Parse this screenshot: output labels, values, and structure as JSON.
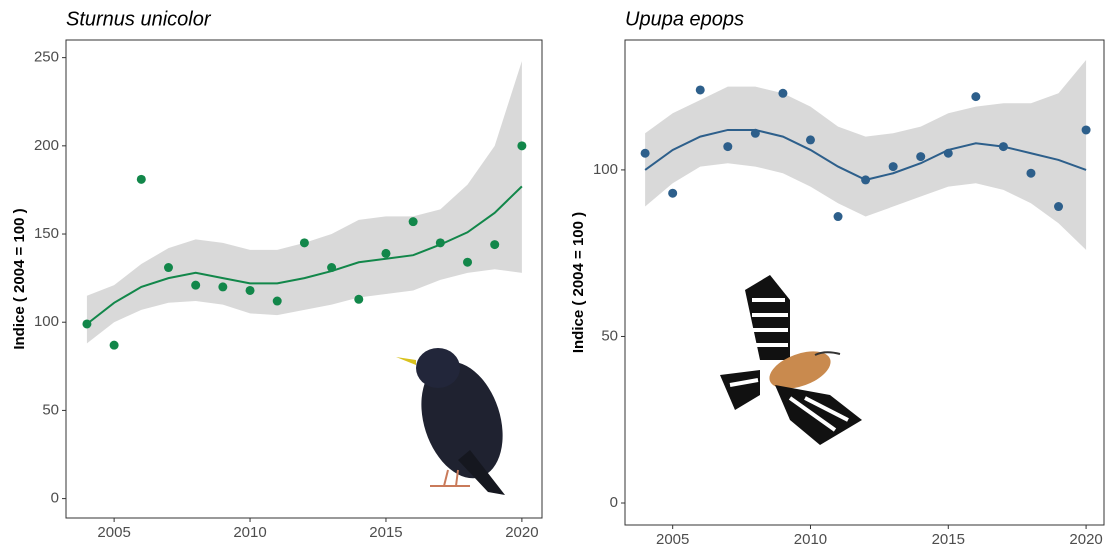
{
  "chart_data": [
    {
      "type": "scatter",
      "title": "Sturnus unicolor",
      "y_label": "Indice ( 2004 = 100 )",
      "color": "#12874a",
      "ribbon_color": "#d9d9d9",
      "x": [
        2004,
        2005,
        2006,
        2007,
        2008,
        2009,
        2010,
        2011,
        2012,
        2013,
        2014,
        2015,
        2016,
        2017,
        2018,
        2019,
        2020
      ],
      "values": [
        99,
        87,
        181,
        131,
        121,
        120,
        118,
        112,
        145,
        131,
        113,
        139,
        157,
        145,
        134,
        144,
        200
      ],
      "trend": [
        99,
        111,
        120,
        125,
        128,
        125,
        122,
        122,
        125,
        129,
        134,
        136,
        138,
        144,
        151,
        162,
        177
      ],
      "lower": [
        88,
        100,
        107,
        111,
        112,
        110,
        105,
        104,
        107,
        110,
        114,
        116,
        118,
        124,
        128,
        130,
        128
      ],
      "upper": [
        115,
        121,
        133,
        142,
        147,
        145,
        141,
        141,
        145,
        150,
        158,
        160,
        160,
        164,
        178,
        200,
        248
      ],
      "xlim": [
        2003.23,
        2020.74
      ],
      "ylim": [
        -11,
        260
      ],
      "xticks": [
        2005,
        2010,
        2015,
        2020
      ],
      "yticks": [
        0,
        50,
        100,
        150,
        200,
        250
      ]
    },
    {
      "type": "scatter",
      "title": "Upupa epops",
      "y_label": "Indice ( 2004 = 100 )",
      "color": "#2d5f8b",
      "ribbon_color": "#d9d9d9",
      "x": [
        2004,
        2005,
        2006,
        2007,
        2008,
        2009,
        2010,
        2011,
        2012,
        2013,
        2014,
        2015,
        2016,
        2017,
        2018,
        2019,
        2020
      ],
      "values": [
        105,
        93,
        124,
        107,
        111,
        123,
        109,
        86,
        97,
        101,
        104,
        105,
        122,
        107,
        99,
        89,
        112
      ],
      "trend": [
        100,
        106,
        110,
        112,
        112,
        110,
        106,
        101,
        97,
        99,
        102,
        106,
        108,
        107,
        105,
        103,
        100
      ],
      "lower": [
        89,
        96,
        101,
        102,
        101,
        99,
        95,
        90,
        86,
        89,
        92,
        95,
        96,
        94,
        90,
        84,
        76
      ],
      "upper": [
        111,
        117,
        121,
        125,
        125,
        123,
        119,
        113,
        110,
        111,
        113,
        117,
        119,
        120,
        120,
        123,
        133
      ],
      "xlim": [
        2003.27,
        2020.65
      ],
      "ylim": [
        -6.6,
        139
      ],
      "xticks": [
        2005,
        2010,
        2015,
        2020
      ],
      "yticks": [
        0,
        50,
        100
      ]
    }
  ]
}
